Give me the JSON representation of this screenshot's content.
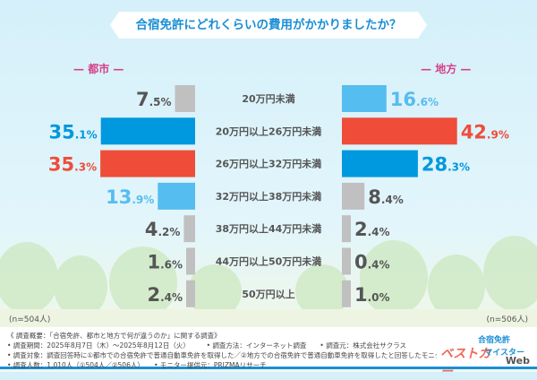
{
  "title": "合宿免許にどれくらいの費用がかかりましたか？",
  "chart_data": {
    "type": "bar",
    "orientation": "horizontal-butterfly",
    "categories": [
      "20万円未満",
      "20万円以上26万円未満",
      "26万円以上32万円未満",
      "32万円以上38万円未満",
      "38万円以上44万円未満",
      "44万円以上50万円未満",
      "50万円以上"
    ],
    "series": [
      {
        "name": "都市",
        "values": [
          7.5,
          35.1,
          35.3,
          13.9,
          4.2,
          1.6,
          2.4
        ],
        "sample": "(n=504人)"
      },
      {
        "name": "地方",
        "values": [
          16.6,
          42.9,
          28.3,
          8.4,
          2.4,
          0.4,
          1.0
        ],
        "sample": "(n=506人)"
      }
    ],
    "unit": "%",
    "colors": {
      "rank1": "#ef4d3a",
      "rank2": "#0098de",
      "rank3": "#55bdf0",
      "other": "#c0c0c0"
    }
  },
  "footer": {
    "lines": [
      "《 調査概要：「合宿免許、都市と地方で何が違うのか」に関する調査》",
      "• 調査期間：2025年8月7日（木）～2025年8月12日（火）　　　• 調査方法：インターネット調査　　• 調査元：株式会社サクラス",
      "• 調査対象：調査回答時に①都市での合宿免許で普通自動車免許を取得した／②地方での合宿免許で普通自動車免許を取得したと回答したモニター",
      "• 調査人数：1,010人（①504人／②506人）　　• モニター提供元：PRIZMAリサーチ"
    ],
    "logo_text": [
      "合宿免許",
      "ベストカー",
      "マイスター",
      "Web"
    ]
  }
}
